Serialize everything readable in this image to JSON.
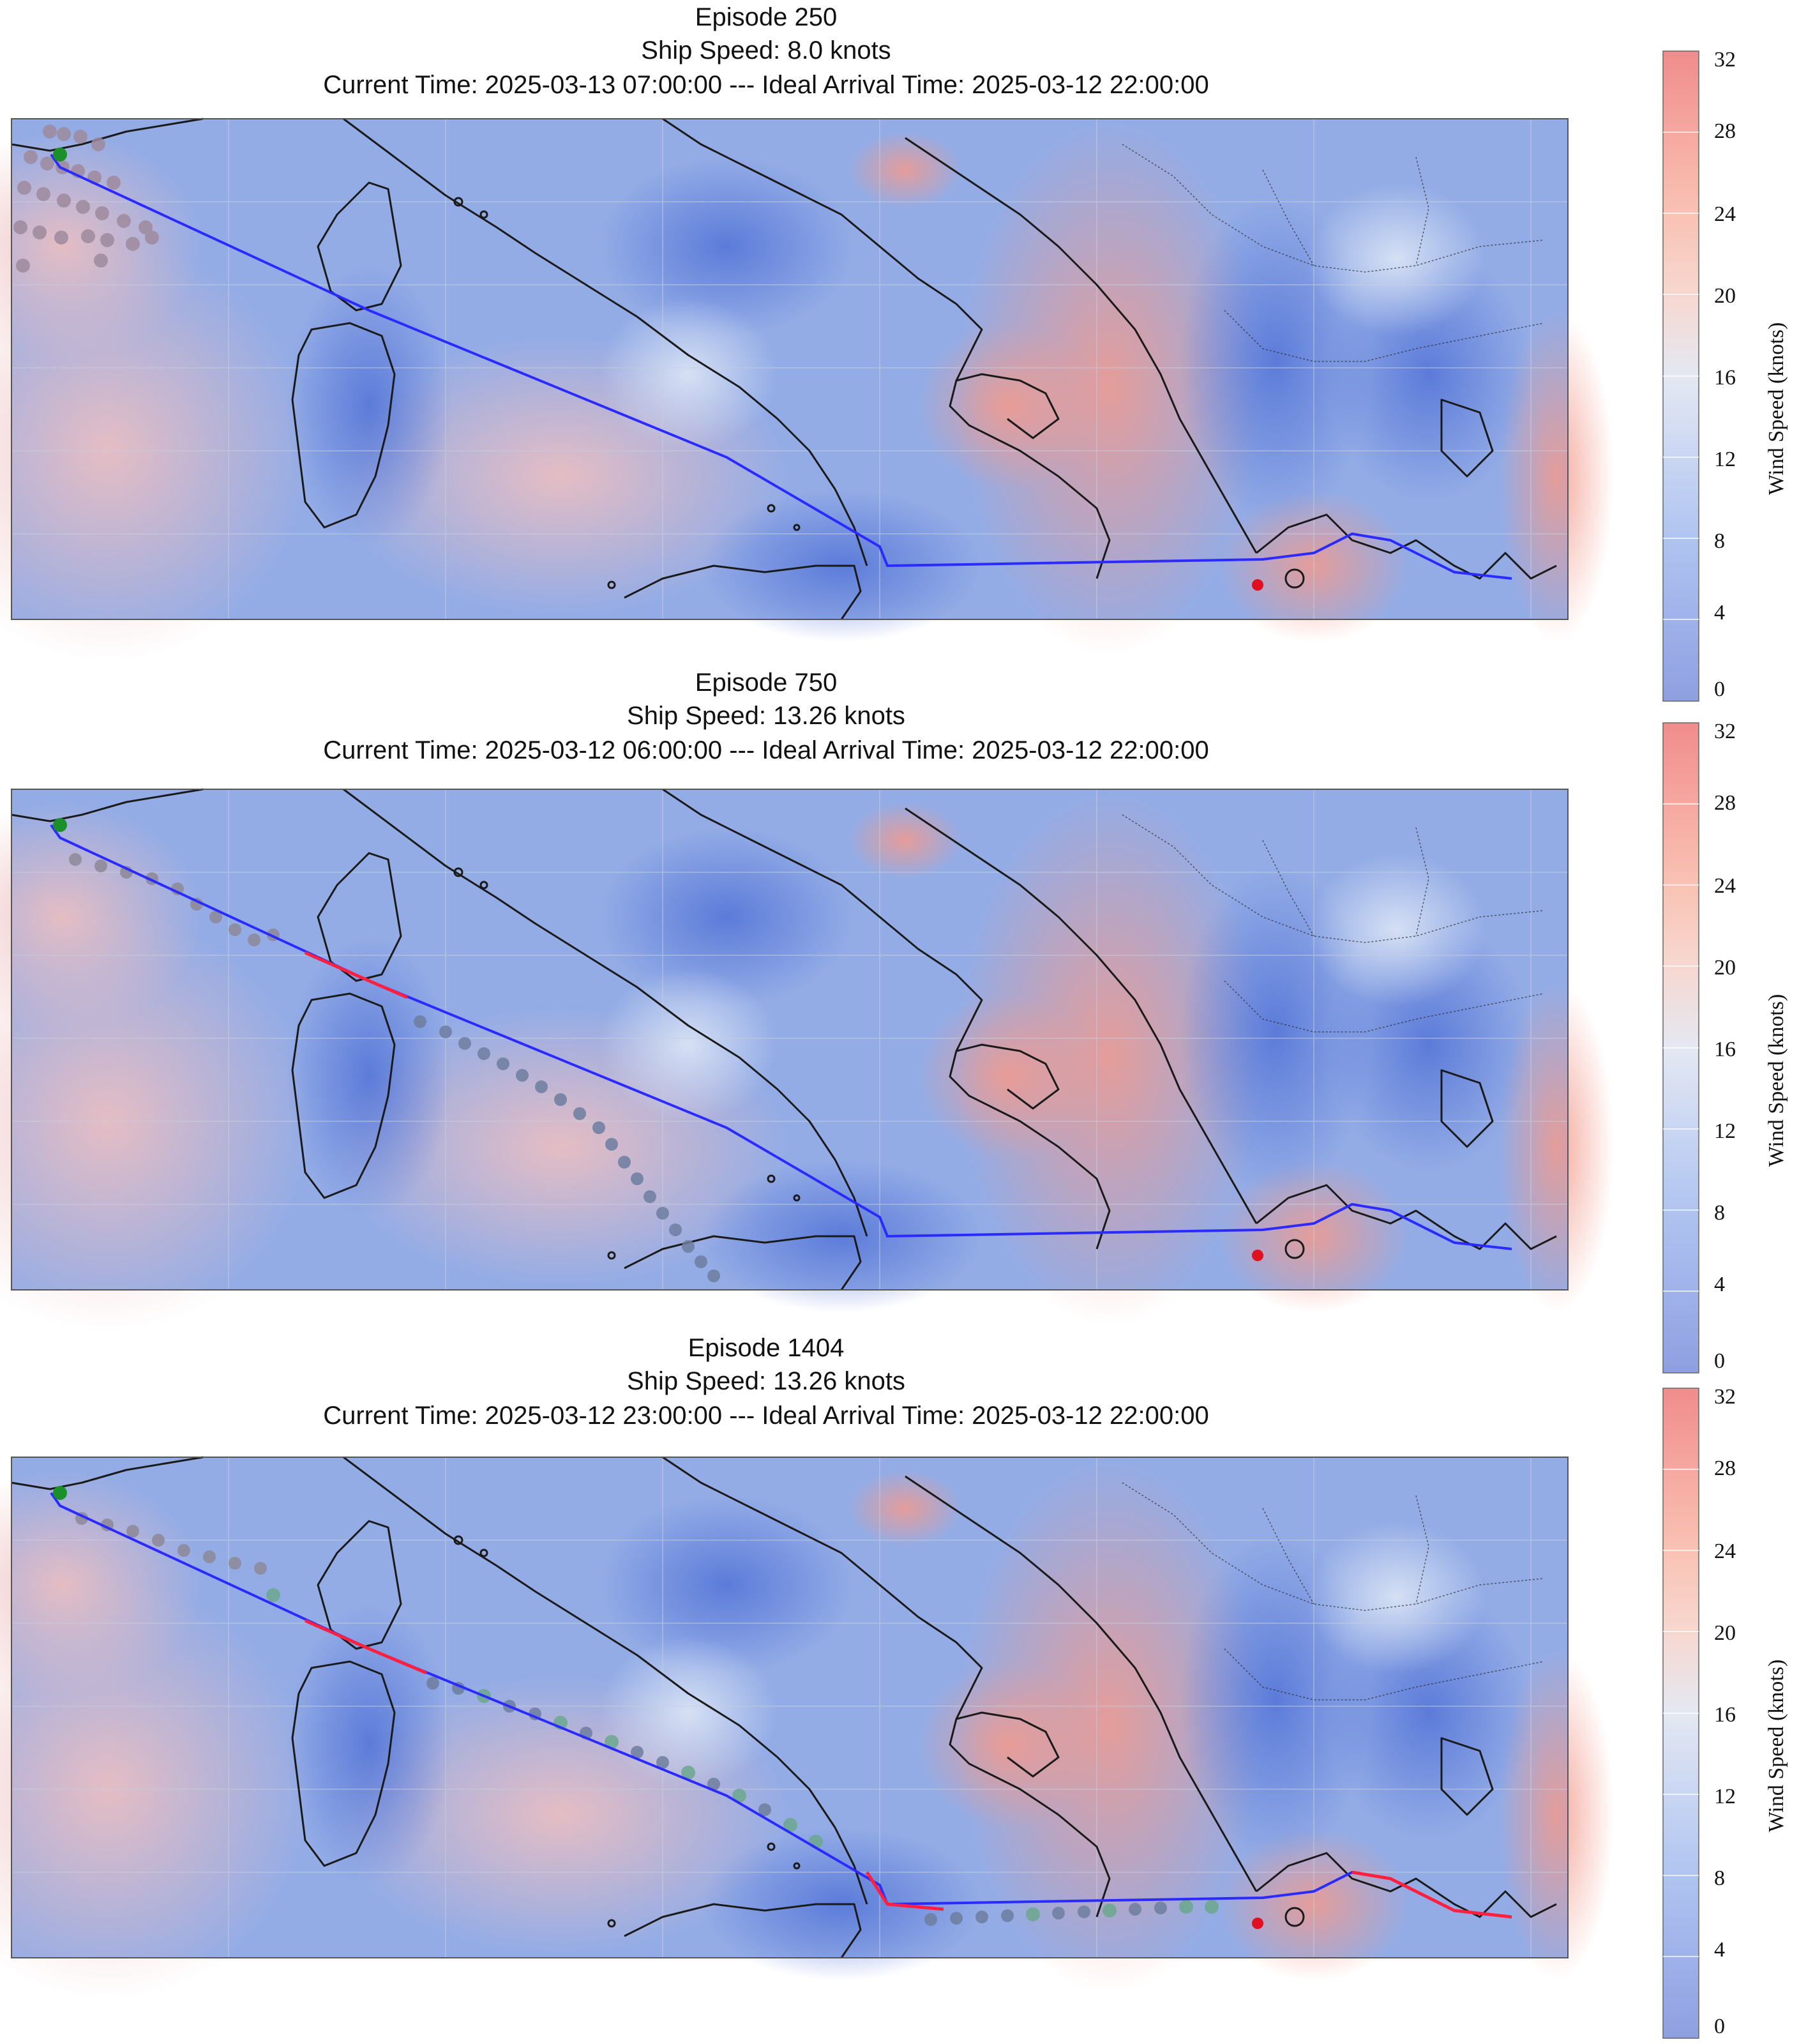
{
  "panels": [
    {
      "title_lines": [
        "Episode 250",
        "Ship Speed: 8.0 knots",
        "Current Time: 2025-03-13 07:00:00 --- Ideal Arrival Time: 2025-03-12 22:00:00"
      ],
      "colorbar": {
        "label": "Wind Speed (knots)",
        "ticks": [
          "32",
          "28",
          "24",
          "20",
          "16",
          "12",
          "8",
          "4",
          "0"
        ]
      },
      "has_red_route_segments": false
    },
    {
      "title_lines": [
        "Episode 750",
        "Ship Speed: 13.26 knots",
        "Current Time: 2025-03-12 06:00:00 --- Ideal Arrival Time: 2025-03-12 22:00:00"
      ],
      "colorbar": {
        "label": "Wind Speed (knots)",
        "ticks": [
          "32",
          "28",
          "24",
          "20",
          "16",
          "12",
          "8",
          "4",
          "0"
        ]
      },
      "has_red_route_segments": true
    },
    {
      "title_lines": [
        "Episode 1404",
        "Ship Speed: 13.26 knots",
        "Current Time: 2025-03-12 23:00:00 --- Ideal Arrival Time: 2025-03-12 22:00:00"
      ],
      "colorbar": {
        "label": "Wind Speed (knots)",
        "ticks": [
          "32",
          "28",
          "24",
          "20",
          "16",
          "12",
          "8",
          "4",
          "0"
        ]
      },
      "has_red_route_segments": true
    }
  ],
  "colors": {
    "route": "#2b2bff",
    "route_violation": "#ff2040",
    "start_marker": "#1a8f2a",
    "end_marker": "#e01020",
    "wind_low": "#8fa3e0",
    "wind_high": "#f08a8a",
    "coastline": "#1a1a1a"
  }
}
